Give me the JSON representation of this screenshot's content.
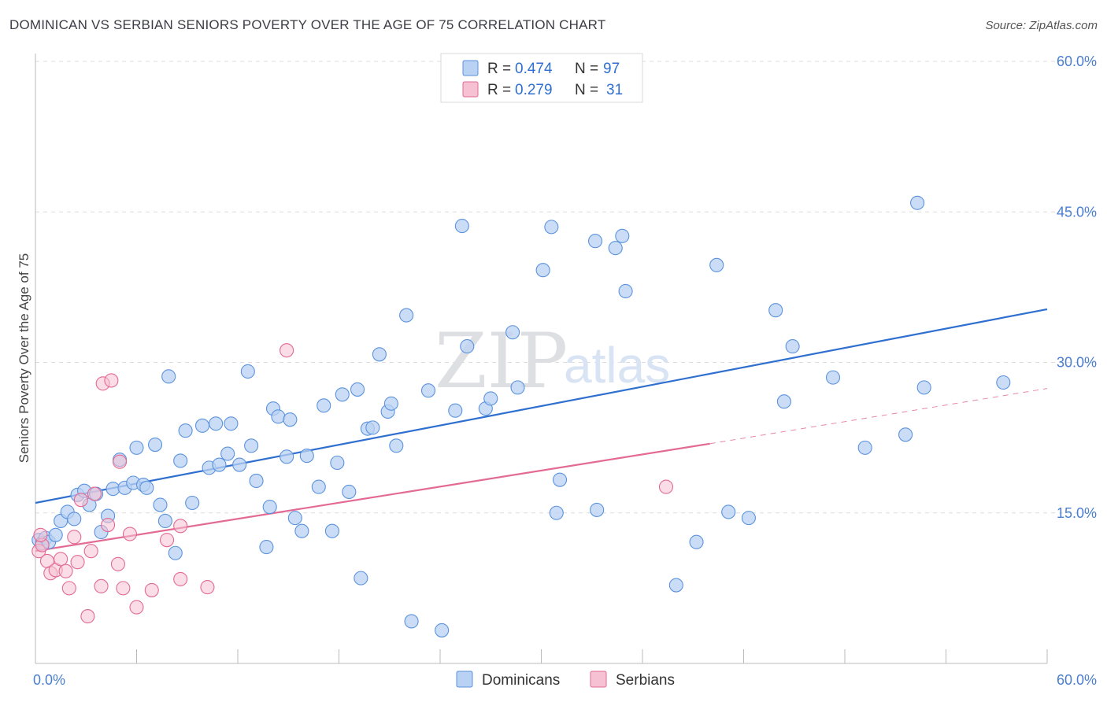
{
  "title": "DOMINICAN VS SERBIAN SENIORS POVERTY OVER THE AGE OF 75 CORRELATION CHART",
  "source": "Source: ZipAtlas.com",
  "watermark": {
    "zip": "ZIP",
    "atlas": "atlas"
  },
  "colors": {
    "dominicans": "#5b93dd",
    "dominicans_fill": "#b9d2f3",
    "serbians": "#e36a94",
    "serbians_fill": "#f6c1d2",
    "grid": "#dcdcdc",
    "tick_text": "#4a7fd0"
  },
  "legend": {
    "rows": [
      {
        "r_label": "R = ",
        "r_value": "0.474",
        "n_label": "N = ",
        "n_value": "97"
      },
      {
        "r_label": "R = ",
        "r_value": "0.279",
        "n_label": "N = ",
        "n_value": "31"
      }
    ]
  },
  "bottom_legend": [
    "Dominicans",
    "Serbians"
  ],
  "chart_data": {
    "type": "scatter",
    "title": "DOMINICAN VS SERBIAN SENIORS POVERTY OVER THE AGE OF 75 CORRELATION CHART",
    "xlabel": "",
    "ylabel": "Seniors Poverty Over the Age of 75",
    "xlim": [
      0,
      60
    ],
    "ylim": [
      0,
      60
    ],
    "x_tick_labels": [
      "0.0%",
      "60.0%"
    ],
    "y_ticks": [
      15,
      30,
      45,
      60
    ],
    "y_tick_labels": [
      "15.0%",
      "30.0%",
      "45.0%",
      "60.0%"
    ],
    "grid": true,
    "legend_position": "top-center",
    "series": [
      {
        "name": "Dominicans",
        "r": 0.474,
        "n": 97,
        "trend": {
          "x": [
            0,
            60
          ],
          "y": [
            16.0,
            35.3
          ]
        },
        "points": [
          [
            0.2,
            12.3
          ],
          [
            0.4,
            12.0
          ],
          [
            0.6,
            12.5
          ],
          [
            0.8,
            12.1
          ],
          [
            1.2,
            12.8
          ],
          [
            1.5,
            14.2
          ],
          [
            1.9,
            15.1
          ],
          [
            2.3,
            14.4
          ],
          [
            2.5,
            16.8
          ],
          [
            2.9,
            17.2
          ],
          [
            3.2,
            15.8
          ],
          [
            3.6,
            16.9
          ],
          [
            3.9,
            13.1
          ],
          [
            4.3,
            14.7
          ],
          [
            4.6,
            17.4
          ],
          [
            5.0,
            20.3
          ],
          [
            5.3,
            17.5
          ],
          [
            5.8,
            18.0
          ],
          [
            6.0,
            21.5
          ],
          [
            6.4,
            17.8
          ],
          [
            6.6,
            17.5
          ],
          [
            7.1,
            21.8
          ],
          [
            7.4,
            15.8
          ],
          [
            7.7,
            14.2
          ],
          [
            7.9,
            28.6
          ],
          [
            8.3,
            11.0
          ],
          [
            8.6,
            20.2
          ],
          [
            8.9,
            23.2
          ],
          [
            9.3,
            16.0
          ],
          [
            9.9,
            23.7
          ],
          [
            10.3,
            19.5
          ],
          [
            10.7,
            23.9
          ],
          [
            10.9,
            19.8
          ],
          [
            11.4,
            20.9
          ],
          [
            11.6,
            23.9
          ],
          [
            12.1,
            19.8
          ],
          [
            12.6,
            29.1
          ],
          [
            12.8,
            21.7
          ],
          [
            13.1,
            18.2
          ],
          [
            13.7,
            11.6
          ],
          [
            13.9,
            15.6
          ],
          [
            14.1,
            25.4
          ],
          [
            14.4,
            24.6
          ],
          [
            14.9,
            20.6
          ],
          [
            15.1,
            24.3
          ],
          [
            15.4,
            14.5
          ],
          [
            15.8,
            13.2
          ],
          [
            16.1,
            20.7
          ],
          [
            16.8,
            17.6
          ],
          [
            17.1,
            25.7
          ],
          [
            17.6,
            13.2
          ],
          [
            17.9,
            20.0
          ],
          [
            18.2,
            26.8
          ],
          [
            18.6,
            17.1
          ],
          [
            19.1,
            27.3
          ],
          [
            19.3,
            8.5
          ],
          [
            19.7,
            23.4
          ],
          [
            20.0,
            23.5
          ],
          [
            20.4,
            30.8
          ],
          [
            20.9,
            25.1
          ],
          [
            21.1,
            25.9
          ],
          [
            21.4,
            21.7
          ],
          [
            22.0,
            34.7
          ],
          [
            22.3,
            4.2
          ],
          [
            23.3,
            27.2
          ],
          [
            24.1,
            3.3
          ],
          [
            24.9,
            25.2
          ],
          [
            25.3,
            43.6
          ],
          [
            25.6,
            31.6
          ],
          [
            26.7,
            25.4
          ],
          [
            27.0,
            26.4
          ],
          [
            28.3,
            33.0
          ],
          [
            28.6,
            27.5
          ],
          [
            30.1,
            39.2
          ],
          [
            30.6,
            43.5
          ],
          [
            30.9,
            15.0
          ],
          [
            31.1,
            18.3
          ],
          [
            32.0,
            57.8
          ],
          [
            33.2,
            42.1
          ],
          [
            33.3,
            15.3
          ],
          [
            34.4,
            41.4
          ],
          [
            34.8,
            42.6
          ],
          [
            35.0,
            37.1
          ],
          [
            38.0,
            7.8
          ],
          [
            39.2,
            12.1
          ],
          [
            40.4,
            39.7
          ],
          [
            41.1,
            15.1
          ],
          [
            42.3,
            14.5
          ],
          [
            43.9,
            35.2
          ],
          [
            44.4,
            26.1
          ],
          [
            44.9,
            31.6
          ],
          [
            47.3,
            28.5
          ],
          [
            49.2,
            21.5
          ],
          [
            51.6,
            22.8
          ],
          [
            52.3,
            45.9
          ],
          [
            52.7,
            27.5
          ],
          [
            57.4,
            28.0
          ]
        ]
      },
      {
        "name": "Serbians",
        "r": 0.279,
        "n": 31,
        "trend": {
          "x": [
            0,
            40
          ],
          "y": [
            11.2,
            21.9
          ]
        },
        "trend_dashed": {
          "x": [
            40,
            60
          ],
          "y": [
            21.9,
            27.4
          ]
        },
        "points": [
          [
            0.2,
            11.2
          ],
          [
            0.4,
            11.8
          ],
          [
            0.7,
            10.2
          ],
          [
            0.9,
            9.0
          ],
          [
            1.2,
            9.3
          ],
          [
            1.5,
            10.4
          ],
          [
            1.8,
            9.2
          ],
          [
            2.0,
            7.5
          ],
          [
            2.3,
            12.6
          ],
          [
            2.5,
            10.1
          ],
          [
            2.7,
            16.3
          ],
          [
            3.1,
            4.7
          ],
          [
            3.3,
            11.2
          ],
          [
            3.5,
            16.9
          ],
          [
            3.9,
            7.7
          ],
          [
            4.0,
            27.9
          ],
          [
            4.3,
            13.8
          ],
          [
            4.5,
            28.2
          ],
          [
            4.9,
            9.9
          ],
          [
            5.0,
            20.1
          ],
          [
            5.2,
            7.5
          ],
          [
            5.6,
            12.9
          ],
          [
            6.0,
            5.6
          ],
          [
            6.9,
            7.3
          ],
          [
            7.8,
            12.3
          ],
          [
            8.6,
            8.4
          ],
          [
            8.6,
            13.7
          ],
          [
            10.2,
            7.6
          ],
          [
            14.9,
            31.2
          ],
          [
            37.4,
            17.6
          ],
          [
            0.3,
            12.8
          ]
        ]
      }
    ]
  }
}
